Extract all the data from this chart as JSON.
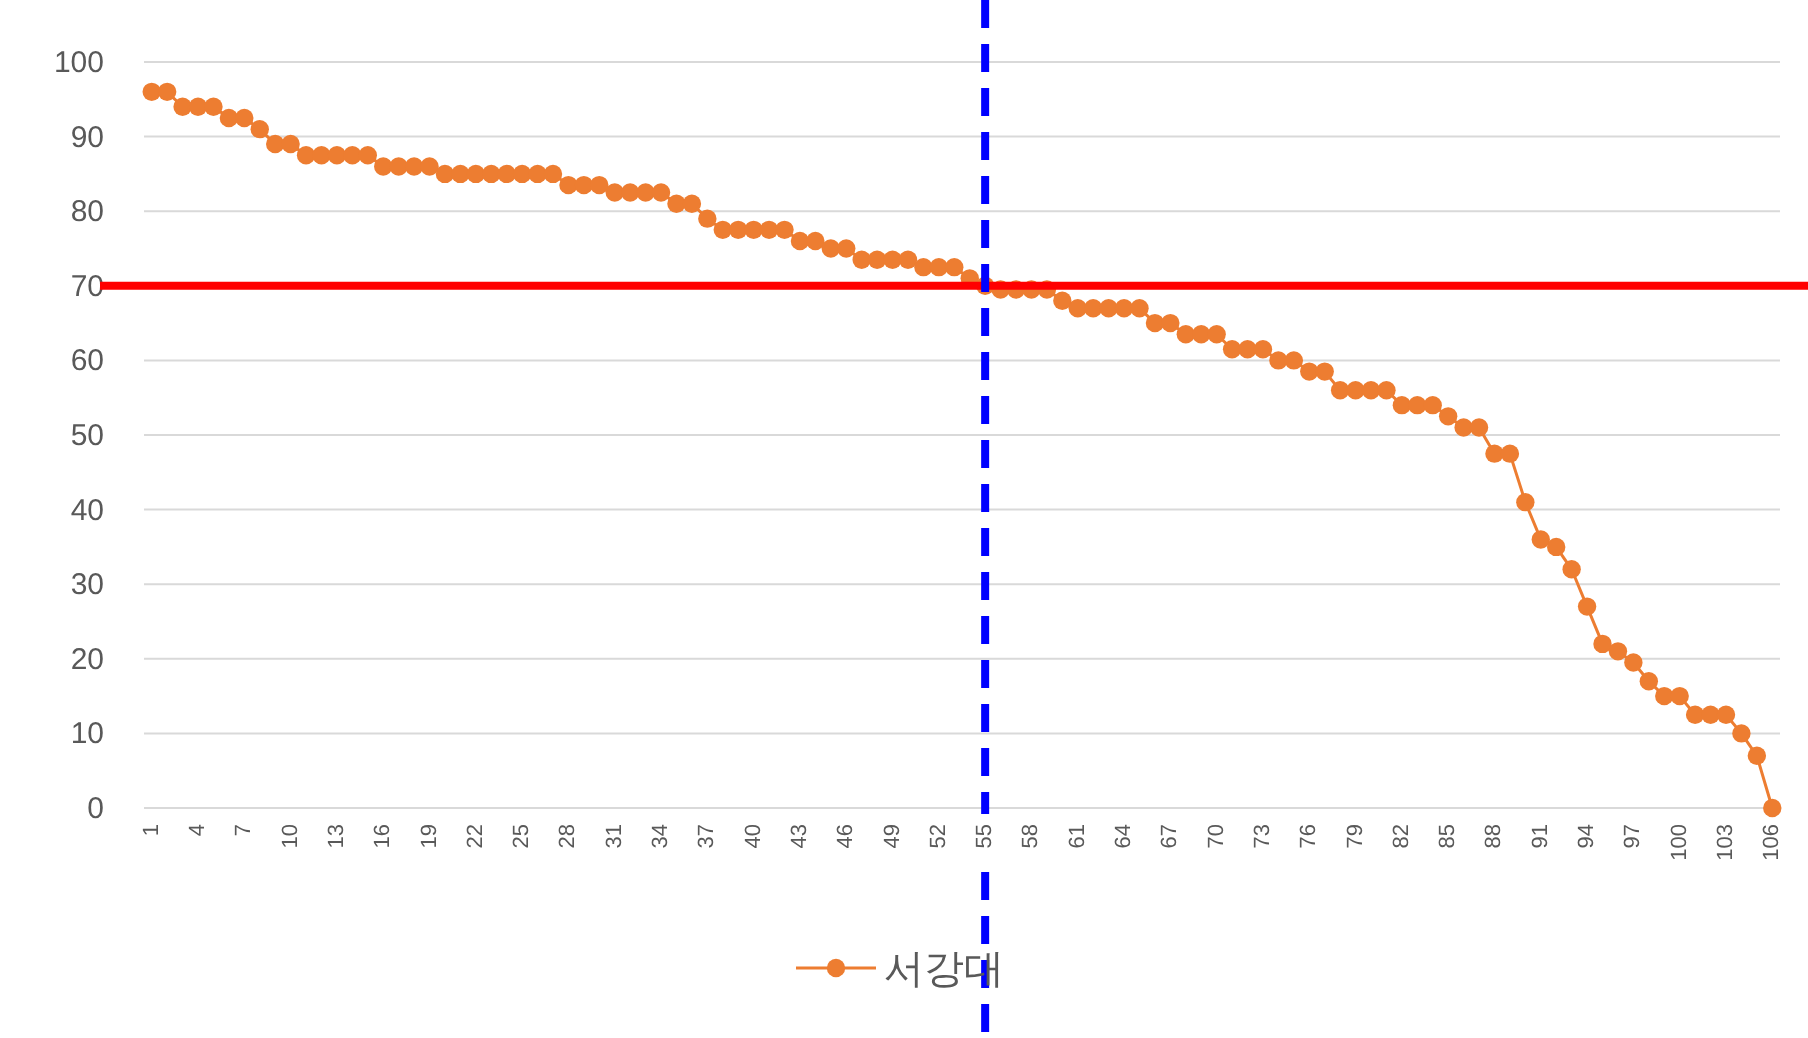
{
  "chart_data": {
    "type": "line",
    "categories": [
      "1",
      null,
      null,
      "4",
      null,
      null,
      "7",
      null,
      null,
      "10",
      null,
      null,
      "13",
      null,
      null,
      "16",
      null,
      null,
      "19",
      null,
      null,
      "22",
      null,
      null,
      "25",
      null,
      null,
      "28",
      null,
      null,
      "31",
      null,
      null,
      "34",
      null,
      null,
      "37",
      null,
      null,
      "40",
      null,
      null,
      "43",
      null,
      null,
      "46",
      null,
      null,
      "49",
      null,
      null,
      "52",
      null,
      null,
      "55",
      null,
      null,
      "58",
      null,
      null,
      "61",
      null,
      null,
      "64",
      null,
      null,
      "67",
      null,
      null,
      "70",
      null,
      null,
      "73",
      null,
      null,
      "76",
      null,
      null,
      "79",
      null,
      null,
      "82",
      null,
      null,
      "85",
      null,
      null,
      "88",
      null,
      null,
      "91",
      null,
      null,
      "94",
      null,
      null,
      "97",
      null,
      null,
      "100",
      null,
      null,
      "103",
      null,
      null,
      "106"
    ],
    "series": [
      {
        "name": "서강대",
        "color": "#ed7d31",
        "values": [
          96,
          96,
          94,
          94,
          94,
          92.5,
          92.5,
          91,
          89,
          89,
          87.5,
          87.5,
          87.5,
          87.5,
          87.5,
          86,
          86,
          86,
          86,
          85,
          85,
          85,
          85,
          85,
          85,
          85,
          85,
          83.5,
          83.5,
          83.5,
          82.5,
          82.5,
          82.5,
          82.5,
          81,
          81,
          79,
          77.5,
          77.5,
          77.5,
          77.5,
          77.5,
          76,
          76,
          75,
          75,
          73.5,
          73.5,
          73.5,
          73.5,
          72.5,
          72.5,
          72.5,
          71,
          70,
          69.5,
          69.5,
          69.5,
          69.5,
          68,
          67,
          67,
          67,
          67,
          67,
          65,
          65,
          63.5,
          63.5,
          63.5,
          61.5,
          61.5,
          61.5,
          60,
          60,
          58.5,
          58.5,
          56,
          56,
          56,
          56,
          54,
          54,
          54,
          52.5,
          51,
          51,
          47.5,
          47.5,
          41,
          36,
          35,
          32,
          27,
          22,
          21,
          19.5,
          17,
          15,
          15,
          12.5,
          12.5,
          12.5,
          10,
          7,
          0
        ]
      }
    ],
    "ylim": [
      0,
      100
    ],
    "yticks": [
      0,
      10,
      20,
      30,
      40,
      50,
      60,
      70,
      80,
      90,
      100
    ],
    "grid": "y",
    "legend": "bottom",
    "marker": "circle",
    "line_style": "solid",
    "ref_lines": [
      {
        "axis": "y",
        "value": 70,
        "color": "#ff0000",
        "line_style": "solid"
      },
      {
        "axis": "x",
        "value": "55",
        "color": "#0000ff",
        "line_style": "dashed"
      }
    ]
  }
}
